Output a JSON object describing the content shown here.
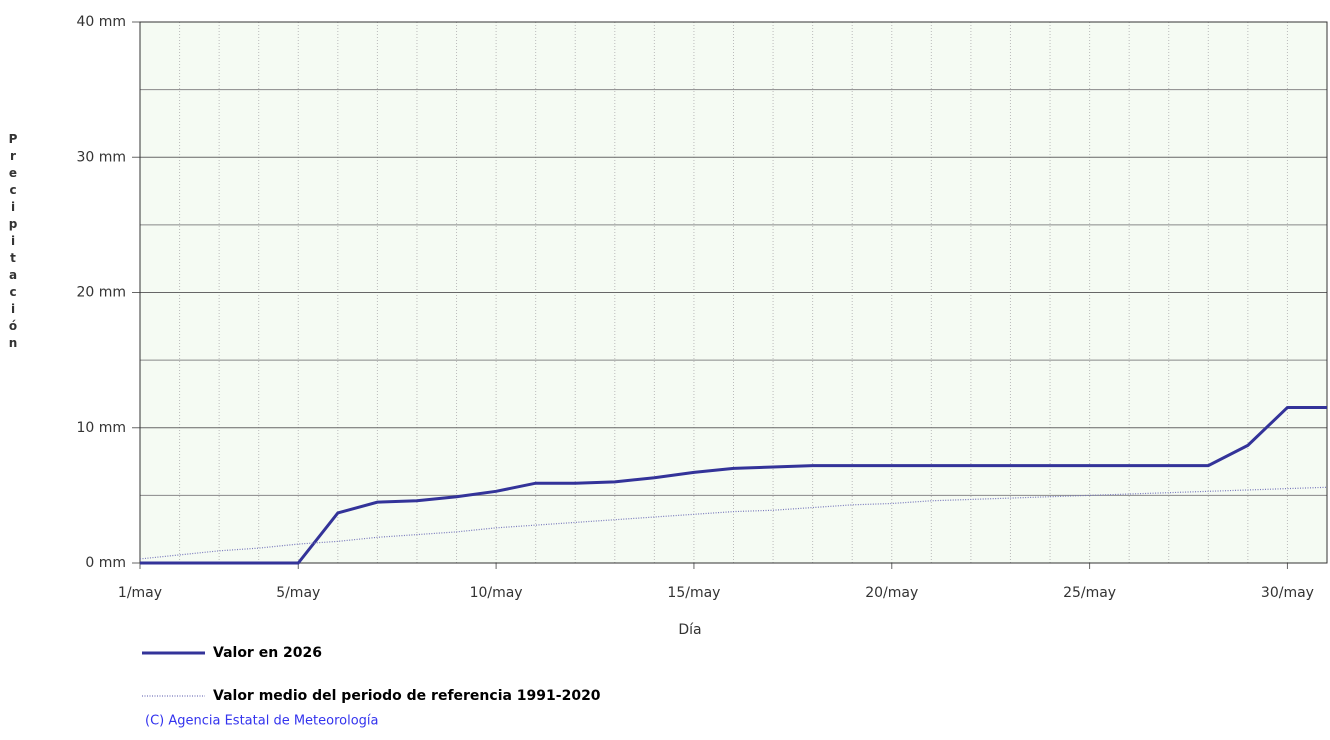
{
  "chart_data": {
    "type": "line",
    "y_label": "Precipitación",
    "x_label": "Día",
    "x": [
      1,
      2,
      3,
      4,
      5,
      6,
      7,
      8,
      9,
      10,
      11,
      12,
      13,
      14,
      15,
      16,
      17,
      18,
      19,
      20,
      21,
      22,
      23,
      24,
      25,
      26,
      27,
      28,
      29,
      30,
      31
    ],
    "xlim": [
      1,
      31
    ],
    "xticks": [
      {
        "value": 1,
        "label": "1/may"
      },
      {
        "value": 5,
        "label": "5/may"
      },
      {
        "value": 10,
        "label": "10/may"
      },
      {
        "value": 15,
        "label": "15/may"
      },
      {
        "value": 20,
        "label": "20/may"
      },
      {
        "value": 25,
        "label": "25/may"
      },
      {
        "value": 30,
        "label": "30/may"
      }
    ],
    "ylim": [
      0,
      40
    ],
    "yticks": [
      {
        "value": 0,
        "label": "0 mm"
      },
      {
        "value": 10,
        "label": "10 mm"
      },
      {
        "value": 20,
        "label": "20 mm"
      },
      {
        "value": 30,
        "label": "30 mm"
      },
      {
        "value": 40,
        "label": "40 mm"
      }
    ],
    "y_minor_ticks": [
      5,
      15,
      25,
      35
    ],
    "grid": true,
    "legend": "bottom",
    "series": [
      {
        "name": "Valor en 2026",
        "color": "#333399",
        "style": "solid",
        "values": [
          0,
          0,
          0,
          0,
          0,
          3.7,
          4.5,
          4.6,
          4.9,
          5.3,
          5.9,
          5.9,
          6.0,
          6.3,
          6.7,
          7.0,
          7.1,
          7.2,
          7.2,
          7.2,
          7.2,
          7.2,
          7.2,
          7.2,
          7.2,
          7.2,
          7.2,
          7.2,
          8.7,
          11.5,
          11.5
        ]
      },
      {
        "name": "Valor medio del periodo de referencia 1991-2020",
        "color": "#7777bb",
        "style": "dotted",
        "values": [
          0.3,
          0.6,
          0.9,
          1.1,
          1.4,
          1.6,
          1.9,
          2.1,
          2.3,
          2.6,
          2.8,
          3.0,
          3.2,
          3.4,
          3.6,
          3.8,
          3.9,
          4.1,
          4.3,
          4.4,
          4.6,
          4.7,
          4.8,
          4.9,
          5.0,
          5.1,
          5.2,
          5.3,
          5.4,
          5.5,
          5.6
        ]
      }
    ],
    "footer": "(C) Agencia Estatal de Meteorología"
  }
}
